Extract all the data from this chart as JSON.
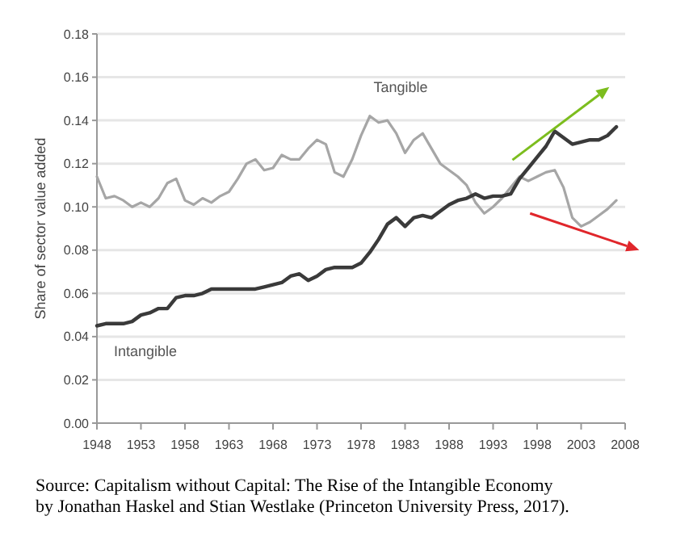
{
  "chart_data": {
    "type": "line",
    "ylabel": "Share of sector value added",
    "x": [
      1948,
      1949,
      1950,
      1951,
      1952,
      1953,
      1954,
      1955,
      1956,
      1957,
      1958,
      1959,
      1960,
      1961,
      1962,
      1963,
      1964,
      1965,
      1966,
      1967,
      1968,
      1969,
      1970,
      1971,
      1972,
      1973,
      1974,
      1975,
      1976,
      1977,
      1978,
      1979,
      1980,
      1981,
      1982,
      1983,
      1984,
      1985,
      1986,
      1987,
      1988,
      1989,
      1990,
      1991,
      1992,
      1993,
      1994,
      1995,
      1996,
      1997,
      1998,
      1999,
      2000,
      2001,
      2002,
      2003,
      2004,
      2005,
      2006,
      2007
    ],
    "series": [
      {
        "name": "Tangible",
        "color": "#a6a6a6",
        "values": [
          0.114,
          0.104,
          0.105,
          0.103,
          0.1,
          0.102,
          0.1,
          0.104,
          0.111,
          0.113,
          0.103,
          0.101,
          0.104,
          0.102,
          0.105,
          0.107,
          0.113,
          0.12,
          0.122,
          0.117,
          0.118,
          0.124,
          0.122,
          0.122,
          0.127,
          0.131,
          0.129,
          0.116,
          0.114,
          0.122,
          0.133,
          0.142,
          0.139,
          0.14,
          0.134,
          0.125,
          0.131,
          0.134,
          0.127,
          0.12,
          0.117,
          0.114,
          0.11,
          0.102,
          0.097,
          0.1,
          0.104,
          0.109,
          0.114,
          0.112,
          0.114,
          0.116,
          0.117,
          0.109,
          0.095,
          0.091,
          0.093,
          0.096,
          0.099,
          0.103
        ]
      },
      {
        "name": "Intangible",
        "color": "#3a3a3a",
        "values": [
          0.045,
          0.046,
          0.046,
          0.046,
          0.047,
          0.05,
          0.051,
          0.053,
          0.053,
          0.058,
          0.059,
          0.059,
          0.06,
          0.062,
          0.062,
          0.062,
          0.062,
          0.062,
          0.062,
          0.063,
          0.064,
          0.065,
          0.068,
          0.069,
          0.066,
          0.068,
          0.071,
          0.072,
          0.072,
          0.072,
          0.074,
          0.079,
          0.085,
          0.092,
          0.095,
          0.091,
          0.095,
          0.096,
          0.095,
          0.098,
          0.101,
          0.103,
          0.104,
          0.106,
          0.104,
          0.105,
          0.105,
          0.106,
          0.113,
          0.118,
          0.123,
          0.128,
          0.135,
          0.132,
          0.129,
          0.13,
          0.131,
          0.131,
          0.133,
          0.137
        ]
      }
    ],
    "xlim": [
      1948,
      2008
    ],
    "xticks": [
      1948,
      1953,
      1958,
      1963,
      1968,
      1973,
      1978,
      1983,
      1988,
      1993,
      1998,
      2003,
      2008
    ],
    "ylim": [
      0,
      0.18
    ],
    "yticks": [
      {
        "value": 0,
        "label": "0.00"
      },
      {
        "value": 0.02,
        "label": "0.02"
      },
      {
        "value": 0.04,
        "label": "0.04"
      },
      {
        "value": 0.06,
        "label": "0.06"
      },
      {
        "value": 0.08,
        "label": "0.08"
      },
      {
        "value": 0.1,
        "label": "0.10"
      },
      {
        "value": 0.12,
        "label": "0.12"
      },
      {
        "value": 0.14,
        "label": "0.14"
      },
      {
        "value": 0.16,
        "label": "0.16"
      },
      {
        "value": 0.18,
        "label": "0.18"
      }
    ],
    "grid": "y",
    "marker": "none",
    "line_style": "solid",
    "legend": false,
    "annotations": [
      "Source: Capitalism without Capital: The Rise of the Intangible Economy",
      "by Jonathan Haskel and Stian Westlake (Princeton University Press, 2017)."
    ]
  }
}
